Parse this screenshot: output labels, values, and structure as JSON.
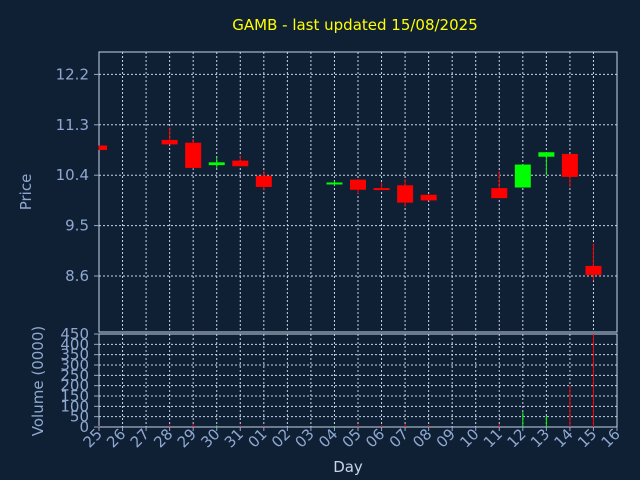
{
  "chart_data": {
    "type": "candlestick",
    "title": "GAMB - last updated 15/08/2025",
    "xlabel": "Day",
    "categories": [
      "25",
      "26",
      "27",
      "28",
      "29",
      "30",
      "31",
      "01",
      "02",
      "03",
      "04",
      "05",
      "06",
      "07",
      "08",
      "09",
      "10",
      "11",
      "12",
      "13",
      "14",
      "15",
      "16"
    ],
    "price": {
      "ylabel": "Price",
      "ylim": [
        7.6,
        12.6
      ],
      "yticks": [
        8.6,
        9.5,
        10.4,
        11.3,
        12.2
      ],
      "candles": [
        {
          "x": "25",
          "open": 10.93,
          "high": 10.93,
          "low": 10.85,
          "close": 10.85
        },
        {
          "x": "28",
          "open": 11.03,
          "high": 11.25,
          "low": 10.95,
          "close": 10.95
        },
        {
          "x": "29",
          "open": 10.98,
          "high": 11.05,
          "low": 10.52,
          "close": 10.53
        },
        {
          "x": "30",
          "open": 10.58,
          "high": 10.72,
          "low": 10.53,
          "close": 10.63
        },
        {
          "x": "31",
          "open": 10.66,
          "high": 10.75,
          "low": 10.56,
          "close": 10.56
        },
        {
          "x": "01",
          "open": 10.39,
          "high": 10.48,
          "low": 10.13,
          "close": 10.19
        },
        {
          "x": "04",
          "open": 10.26,
          "high": 10.3,
          "low": 10.22,
          "close": 10.27
        },
        {
          "x": "05",
          "open": 10.32,
          "high": 10.33,
          "low": 10.07,
          "close": 10.14
        },
        {
          "x": "06",
          "open": 10.17,
          "high": 10.27,
          "low": 10.14,
          "close": 10.15
        },
        {
          "x": "07",
          "open": 10.22,
          "high": 10.33,
          "low": 9.84,
          "close": 9.91
        },
        {
          "x": "08",
          "open": 10.05,
          "high": 10.06,
          "low": 9.95,
          "close": 9.95
        },
        {
          "x": "11",
          "open": 10.17,
          "high": 10.48,
          "low": 9.99,
          "close": 9.99
        },
        {
          "x": "12",
          "open": 10.18,
          "high": 10.59,
          "low": 10.18,
          "close": 10.59
        },
        {
          "x": "13",
          "open": 10.73,
          "high": 10.81,
          "low": 10.4,
          "close": 10.81
        },
        {
          "x": "14",
          "open": 10.78,
          "high": 10.78,
          "low": 10.19,
          "close": 10.37
        },
        {
          "x": "15",
          "open": 8.78,
          "high": 9.18,
          "low": 8.52,
          "close": 8.62
        }
      ]
    },
    "volume": {
      "ylabel": "Volume (0000)",
      "ylim": [
        0,
        450
      ],
      "yticks": [
        0,
        50,
        100,
        150,
        200,
        250,
        300,
        350,
        400,
        450
      ],
      "bars": [
        {
          "x": "25",
          "value": 5,
          "up": false
        },
        {
          "x": "28",
          "value": 12,
          "up": false
        },
        {
          "x": "29",
          "value": 15,
          "up": false
        },
        {
          "x": "30",
          "value": 8,
          "up": true
        },
        {
          "x": "31",
          "value": 10,
          "up": false
        },
        {
          "x": "01",
          "value": 8,
          "up": false
        },
        {
          "x": "04",
          "value": 4,
          "up": true
        },
        {
          "x": "05",
          "value": 12,
          "up": false
        },
        {
          "x": "06",
          "value": 10,
          "up": false
        },
        {
          "x": "07",
          "value": 15,
          "up": false
        },
        {
          "x": "08",
          "value": 10,
          "up": false
        },
        {
          "x": "11",
          "value": 15,
          "up": false
        },
        {
          "x": "12",
          "value": 72,
          "up": true
        },
        {
          "x": "13",
          "value": 55,
          "up": true
        },
        {
          "x": "14",
          "value": 200,
          "up": false
        },
        {
          "x": "15",
          "value": 450,
          "up": false
        }
      ]
    },
    "colors": {
      "background": "#0f2035",
      "axis": "#8fa8d0",
      "grid": "#c8d4e8",
      "up": "#00ff00",
      "down": "#ff0000",
      "title": "#ffff00"
    },
    "grid": true
  }
}
